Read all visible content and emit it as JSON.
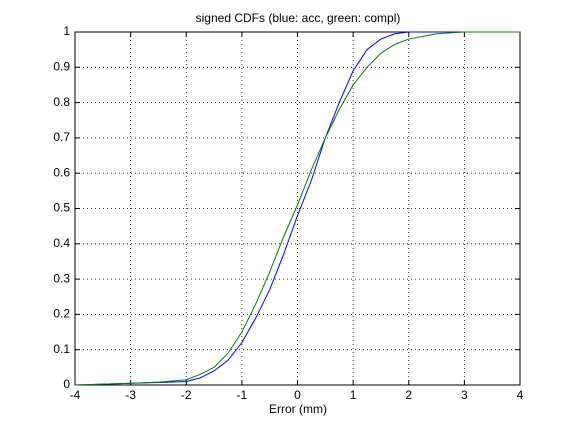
{
  "chart_data": {
    "type": "line",
    "title": "signed CDFs (blue: acc, green: compl)",
    "xlabel": "Error (mm)",
    "x": [
      -4,
      -3,
      -2.5,
      -2,
      -1.75,
      -1.5,
      -1.25,
      -1,
      -0.75,
      -0.5,
      -0.25,
      0,
      0.25,
      0.5,
      0.75,
      1,
      1.25,
      1.5,
      1.75,
      2,
      2.5,
      3,
      4
    ],
    "series": [
      {
        "color": "#0000ff",
        "values": [
          0,
          0.005,
          0.007,
          0.01,
          0.02,
          0.04,
          0.07,
          0.12,
          0.19,
          0.27,
          0.37,
          0.48,
          0.58,
          0.7,
          0.8,
          0.89,
          0.95,
          0.98,
          0.995,
          1,
          1,
          1,
          1
        ]
      },
      {
        "color": "#008000",
        "values": [
          0,
          0.005,
          0.008,
          0.015,
          0.03,
          0.05,
          0.09,
          0.15,
          0.23,
          0.32,
          0.42,
          0.51,
          0.61,
          0.7,
          0.78,
          0.85,
          0.9,
          0.94,
          0.965,
          0.98,
          0.995,
          1,
          1
        ]
      }
    ],
    "xlim": [
      -4,
      4
    ],
    "xticks": [
      -4,
      -3,
      -2,
      -1,
      0,
      1,
      2,
      3,
      4
    ],
    "ylim": [
      0,
      1
    ],
    "yticks": [
      0,
      0.1,
      0.2,
      0.3,
      0.4,
      0.5,
      0.6,
      0.7,
      0.8,
      0.9,
      1
    ],
    "grid": true
  }
}
